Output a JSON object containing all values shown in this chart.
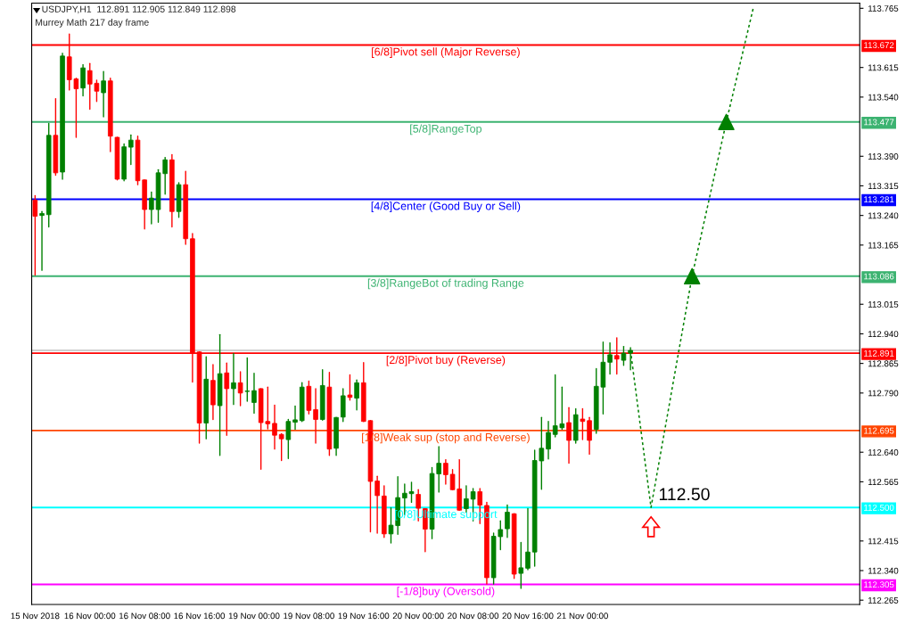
{
  "chart_data": {
    "type": "candlestick",
    "title": "USDJPY,H1  112.891 112.905 112.849 112.898",
    "subtitle": "Murrey Math 217 day frame",
    "categories": [
      "15 Nov 2018",
      null,
      null,
      null,
      null,
      null,
      null,
      null,
      "16 Nov 00:00",
      null,
      null,
      null,
      null,
      null,
      null,
      null,
      "16 Nov 08:00",
      null,
      null,
      null,
      null,
      null,
      null,
      null,
      "16 Nov 16:00",
      null,
      null,
      null,
      null,
      null,
      null,
      null,
      "19 Nov 00:00",
      null,
      null,
      null,
      null,
      null,
      null,
      null,
      "19 Nov 08:00",
      null,
      null,
      null,
      null,
      null,
      null,
      null,
      "19 Nov 16:00",
      null,
      null,
      null,
      null,
      null,
      null,
      null,
      "20 Nov 00:00",
      null,
      null,
      null,
      null,
      null,
      null,
      null,
      "20 Nov 08:00",
      null,
      null,
      null,
      null,
      null,
      null,
      null,
      "20 Nov 16:00",
      null,
      null,
      null,
      null,
      null,
      null,
      null,
      "21 Nov 00:00",
      null,
      null,
      null,
      null,
      null,
      null,
      null,
      null,
      null,
      null,
      null,
      null,
      null,
      null,
      null,
      null,
      null,
      null,
      null,
      null,
      null,
      null,
      null,
      null,
      null,
      null,
      null,
      null,
      null,
      null,
      null,
      null,
      null,
      null,
      null,
      null,
      null,
      null,
      null,
      null
    ],
    "ohlc": [
      [
        113.279,
        113.29,
        113.089,
        113.238
      ],
      [
        113.24,
        113.25,
        113.101,
        113.245
      ],
      [
        113.242,
        113.473,
        113.211,
        113.443
      ],
      [
        113.443,
        113.536,
        113.342,
        113.348
      ],
      [
        113.35,
        113.651,
        113.332,
        113.644
      ],
      [
        113.642,
        113.7,
        113.558,
        113.584
      ],
      [
        113.586,
        113.588,
        113.438,
        113.561
      ],
      [
        113.563,
        113.622,
        113.543,
        113.614
      ],
      [
        113.607,
        113.625,
        113.509,
        113.573
      ],
      [
        113.575,
        113.583,
        113.529,
        113.555
      ],
      [
        113.551,
        113.605,
        113.49,
        113.581
      ],
      [
        113.581,
        113.588,
        113.402,
        113.441
      ],
      [
        113.438,
        113.438,
        113.33,
        113.332
      ],
      [
        113.332,
        113.421,
        113.328,
        113.414
      ],
      [
        113.413,
        113.444,
        113.369,
        113.431
      ],
      [
        113.431,
        113.441,
        113.318,
        113.328
      ],
      [
        113.33,
        113.33,
        113.206,
        113.255
      ],
      [
        113.255,
        113.299,
        113.219,
        113.284
      ],
      [
        113.255,
        113.356,
        113.223,
        113.348
      ],
      [
        113.346,
        113.387,
        113.294,
        113.381
      ],
      [
        113.381,
        113.394,
        113.211,
        113.25
      ],
      [
        113.25,
        113.323,
        113.235,
        113.318
      ],
      [
        113.318,
        113.352,
        113.167,
        113.181
      ],
      [
        113.181,
        113.194,
        112.818,
        112.892
      ],
      [
        112.894,
        112.894,
        112.663,
        112.714
      ],
      [
        112.714,
        112.882,
        112.674,
        112.825
      ],
      [
        112.822,
        112.862,
        112.723,
        112.76
      ],
      [
        112.758,
        112.938,
        112.632,
        112.839
      ],
      [
        112.841,
        112.866,
        112.683,
        112.801
      ],
      [
        112.801,
        112.89,
        112.761,
        112.816
      ],
      [
        112.816,
        112.844,
        112.758,
        112.79
      ],
      [
        112.794,
        112.879,
        112.769,
        112.795
      ],
      [
        112.766,
        112.84,
        112.739,
        112.796
      ],
      [
        112.801,
        112.801,
        112.597,
        112.715
      ],
      [
        112.718,
        112.805,
        112.699,
        112.712
      ],
      [
        112.713,
        112.759,
        112.648,
        112.683
      ],
      [
        112.685,
        112.687,
        112.619,
        112.674
      ],
      [
        112.672,
        112.723,
        112.624,
        112.718
      ],
      [
        112.716,
        112.757,
        112.698,
        112.722
      ],
      [
        112.72,
        112.816,
        112.718,
        112.805
      ],
      [
        112.807,
        112.82,
        112.737,
        112.746
      ],
      [
        112.748,
        112.801,
        112.663,
        112.723
      ],
      [
        112.723,
        112.849,
        112.721,
        112.809
      ],
      [
        112.805,
        112.842,
        112.632,
        112.648
      ],
      [
        112.65,
        112.728,
        112.632,
        112.728
      ],
      [
        112.729,
        112.801,
        112.718,
        112.783
      ],
      [
        112.785,
        112.836,
        112.772,
        112.779
      ],
      [
        112.777,
        112.823,
        112.747,
        112.816
      ],
      [
        112.816,
        112.867,
        112.718,
        112.718
      ],
      [
        112.72,
        112.72,
        112.438,
        112.566
      ],
      [
        112.567,
        112.579,
        112.435,
        112.53
      ],
      [
        112.529,
        112.555,
        112.424,
        112.433
      ],
      [
        112.433,
        112.499,
        112.41,
        112.455
      ],
      [
        112.454,
        112.578,
        112.432,
        112.525
      ],
      [
        112.524,
        112.559,
        112.482,
        112.536
      ],
      [
        112.535,
        112.564,
        112.513,
        112.54
      ],
      [
        112.533,
        112.545,
        112.466,
        112.498
      ],
      [
        112.497,
        112.497,
        112.388,
        112.445
      ],
      [
        112.445,
        112.601,
        112.421,
        112.586
      ],
      [
        112.585,
        112.654,
        112.539,
        112.612
      ],
      [
        112.612,
        112.621,
        112.559,
        112.583
      ],
      [
        112.584,
        112.596,
        112.545,
        112.545
      ],
      [
        112.547,
        112.621,
        112.493,
        112.493
      ],
      [
        112.497,
        112.555,
        112.488,
        112.522
      ],
      [
        112.521,
        112.548,
        112.466,
        112.54
      ],
      [
        112.54,
        112.548,
        112.459,
        112.506
      ],
      [
        112.505,
        112.513,
        112.306,
        112.322
      ],
      [
        112.322,
        112.435,
        112.306,
        112.427
      ],
      [
        112.426,
        112.466,
        112.393,
        112.444
      ],
      [
        112.446,
        112.506,
        112.424,
        112.488
      ],
      [
        112.484,
        112.484,
        112.32,
        112.331
      ],
      [
        112.333,
        112.411,
        112.295,
        112.347
      ],
      [
        112.346,
        112.497,
        112.342,
        112.387
      ],
      [
        112.387,
        112.645,
        112.351,
        112.619
      ],
      [
        112.618,
        112.728,
        112.546,
        112.65
      ],
      [
        112.648,
        112.718,
        112.623,
        112.69
      ],
      [
        112.685,
        112.836,
        112.679,
        112.707
      ],
      [
        112.702,
        112.805,
        112.698,
        112.712
      ],
      [
        112.715,
        112.753,
        112.612,
        112.67
      ],
      [
        112.67,
        112.75,
        112.663,
        112.735
      ],
      [
        112.724,
        112.75,
        112.672,
        112.718
      ],
      [
        112.72,
        112.728,
        112.635,
        112.67
      ],
      [
        112.698,
        112.852,
        112.688,
        112.807
      ],
      [
        112.805,
        112.919,
        112.737,
        112.868
      ],
      [
        112.868,
        112.917,
        112.838,
        112.887
      ],
      [
        112.885,
        112.93,
        112.838,
        112.876
      ],
      [
        112.873,
        112.908,
        112.86,
        112.891
      ],
      [
        112.891,
        112.905,
        112.849,
        112.898
      ],
      null,
      null,
      null,
      null,
      null,
      null,
      null,
      null,
      null,
      null,
      null,
      null,
      null,
      null,
      null,
      null,
      null,
      null,
      null,
      null,
      null,
      null,
      null,
      null,
      null,
      null,
      null,
      null,
      null,
      null,
      null,
      null,
      null
    ],
    "colors": [
      "#ff0000",
      "#008000",
      "#008000",
      "#ff0000",
      "#008000",
      "#ff0000",
      "#ff0000",
      "#008000",
      "#ff0000",
      "#ff0000",
      "#008000",
      "#ff0000",
      "#ff0000",
      "#008000",
      "#008000",
      "#ff0000",
      "#ff0000",
      "#008000",
      "#008000",
      "#008000",
      "#ff0000",
      "#008000",
      "#ff0000",
      "#ff0000",
      "#ff0000",
      "#008000",
      "#ff0000",
      "#008000",
      "#ff0000",
      "#008000",
      "#ff0000",
      "#008000",
      "#008000",
      "#ff0000",
      "#ff0000",
      "#ff0000",
      "#ff0000",
      "#008000",
      "#008000",
      "#008000",
      "#ff0000",
      "#ff0000",
      "#008000",
      "#ff0000",
      "#008000",
      "#008000",
      "#ff0000",
      "#008000",
      "#ff0000",
      "#ff0000",
      "#ff0000",
      "#ff0000",
      "#008000",
      "#008000",
      "#008000",
      "#008000",
      "#ff0000",
      "#ff0000",
      "#008000",
      "#008000",
      "#ff0000",
      "#ff0000",
      "#ff0000",
      "#008000",
      "#008000",
      "#ff0000",
      "#ff0000",
      "#008000",
      "#008000",
      "#008000",
      "#ff0000",
      "#008000",
      "#008000",
      "#008000",
      "#008000",
      "#008000",
      "#008000",
      "#008000",
      "#ff0000",
      "#008000",
      "#ff0000",
      "#ff0000",
      "#008000",
      "#008000",
      "#008000",
      "#ff0000",
      "#008000",
      "#008000",
      null,
      null,
      null,
      null,
      null,
      null,
      null,
      null,
      null,
      null,
      null,
      null,
      null,
      null,
      null,
      null,
      null,
      null,
      null,
      null,
      null,
      null,
      null,
      null,
      null,
      null,
      null,
      null,
      null,
      null,
      null,
      null,
      null
    ],
    "series": [
      {
        "type": "line",
        "color": "#008000",
        "line_style": "dotted",
        "values": [
          null,
          null,
          null,
          null,
          null,
          null,
          null,
          null,
          null,
          null,
          null,
          null,
          null,
          null,
          null,
          null,
          null,
          null,
          null,
          null,
          null,
          null,
          null,
          null,
          null,
          null,
          null,
          null,
          null,
          null,
          null,
          null,
          null,
          null,
          null,
          null,
          null,
          null,
          null,
          null,
          null,
          null,
          null,
          null,
          null,
          null,
          null,
          null,
          null,
          null,
          null,
          null,
          null,
          null,
          null,
          null,
          null,
          null,
          null,
          null,
          null,
          null,
          null,
          null,
          null,
          null,
          null,
          null,
          null,
          null,
          null,
          null,
          null,
          null,
          null,
          null,
          null,
          null,
          null,
          null,
          null,
          null,
          null,
          null,
          null,
          null,
          null,
          112.898,
          null,
          null,
          112.5,
          null,
          null,
          null,
          null,
          null,
          113.086,
          null,
          null,
          null,
          null,
          113.477,
          null,
          null,
          null,
          113.77,
          null,
          null,
          null,
          null,
          null,
          null,
          null,
          null,
          null,
          null,
          null,
          null,
          null,
          null,
          null
        ]
      },
      {
        "type": "scatter",
        "color": "#008000",
        "marker": "triangle",
        "values": [
          null,
          null,
          null,
          null,
          null,
          null,
          null,
          null,
          null,
          null,
          null,
          null,
          null,
          null,
          null,
          null,
          null,
          null,
          null,
          null,
          null,
          null,
          null,
          null,
          null,
          null,
          null,
          null,
          null,
          null,
          null,
          null,
          null,
          null,
          null,
          null,
          null,
          null,
          null,
          null,
          null,
          null,
          null,
          null,
          null,
          null,
          null,
          null,
          null,
          null,
          null,
          null,
          null,
          null,
          null,
          null,
          null,
          null,
          null,
          null,
          null,
          null,
          null,
          null,
          null,
          null,
          null,
          null,
          null,
          null,
          null,
          null,
          null,
          null,
          null,
          null,
          null,
          null,
          null,
          null,
          null,
          null,
          null,
          null,
          null,
          null,
          null,
          null,
          null,
          null,
          null,
          null,
          null,
          null,
          null,
          null,
          113.086,
          null,
          null,
          null,
          null,
          113.477,
          null,
          null,
          null,
          null,
          null,
          null,
          null,
          null,
          null,
          null,
          null,
          null,
          null,
          null,
          null,
          null,
          null,
          null,
          null
        ]
      }
    ],
    "ylim": [
      112.254,
      113.778
    ],
    "yticks": [
      {
        "value": 113.765,
        "label": "113.765"
      },
      {
        "value": 113.615,
        "label": "113.615"
      },
      {
        "value": 113.54,
        "label": "113.540"
      },
      {
        "value": 113.39,
        "label": "113.390"
      },
      {
        "value": 113.315,
        "label": "113.315"
      },
      {
        "value": 113.24,
        "label": "113.240"
      },
      {
        "value": 113.165,
        "label": "113.165"
      },
      {
        "value": 113.015,
        "label": "113.015"
      },
      {
        "value": 112.94,
        "label": "112.940"
      },
      {
        "value": 112.865,
        "label": "112.865"
      },
      {
        "value": 112.79,
        "label": "112.790"
      },
      {
        "value": 112.64,
        "label": "112.640"
      },
      {
        "value": 112.565,
        "label": "112.565"
      },
      {
        "value": 112.415,
        "label": "112.415"
      },
      {
        "value": 112.34,
        "label": "112.340"
      },
      {
        "value": 112.265,
        "label": "112.265"
      }
    ],
    "y2lim": [
      112.254,
      113.778
    ],
    "y2ticks": [
      113.672,
      113.477,
      113.281,
      113.086,
      112.891,
      112.695,
      {
        "value": 112.5,
        "label": "112.500"
      },
      112.305
    ],
    "ref_lines": [
      {
        "axis": "y",
        "value": 113.672,
        "label": "[6/8]Pivot sell (Major Reverse)",
        "color": "#ff0000"
      },
      {
        "axis": "y",
        "value": 113.477,
        "label": "[5/8]RangeTop",
        "color": "#3cb371"
      },
      {
        "axis": "y",
        "value": 113.281,
        "label": "[4/8]Center (Good Buy or Sell)",
        "color": "#0000ff"
      },
      {
        "axis": "y",
        "value": 113.086,
        "label": "[3/8]RangeBot of trading Range",
        "color": "#3cb371"
      },
      {
        "axis": "y",
        "value": 112.898,
        "label": null,
        "color": "#c0c0c0"
      },
      {
        "axis": "y",
        "value": 112.891,
        "label": "[2/8]Pivot buy (Reverse)",
        "color": "#ff0000"
      },
      {
        "axis": "y",
        "value": 112.695,
        "label": "[1/8]Weak sup (stop and Reverse)",
        "color": "#ff4500"
      },
      {
        "axis": "y",
        "value": 112.5,
        "label": "[0/8]Ultimate support",
        "color": "#00ffff"
      },
      {
        "axis": "y",
        "value": 112.305,
        "label": "[-1/8]buy (Oversold)",
        "color": "#ff00ff"
      }
    ],
    "annotations": [
      {
        "text": "112.50",
        "y": 112.5
      }
    ],
    "grid": false,
    "legend": false
  }
}
